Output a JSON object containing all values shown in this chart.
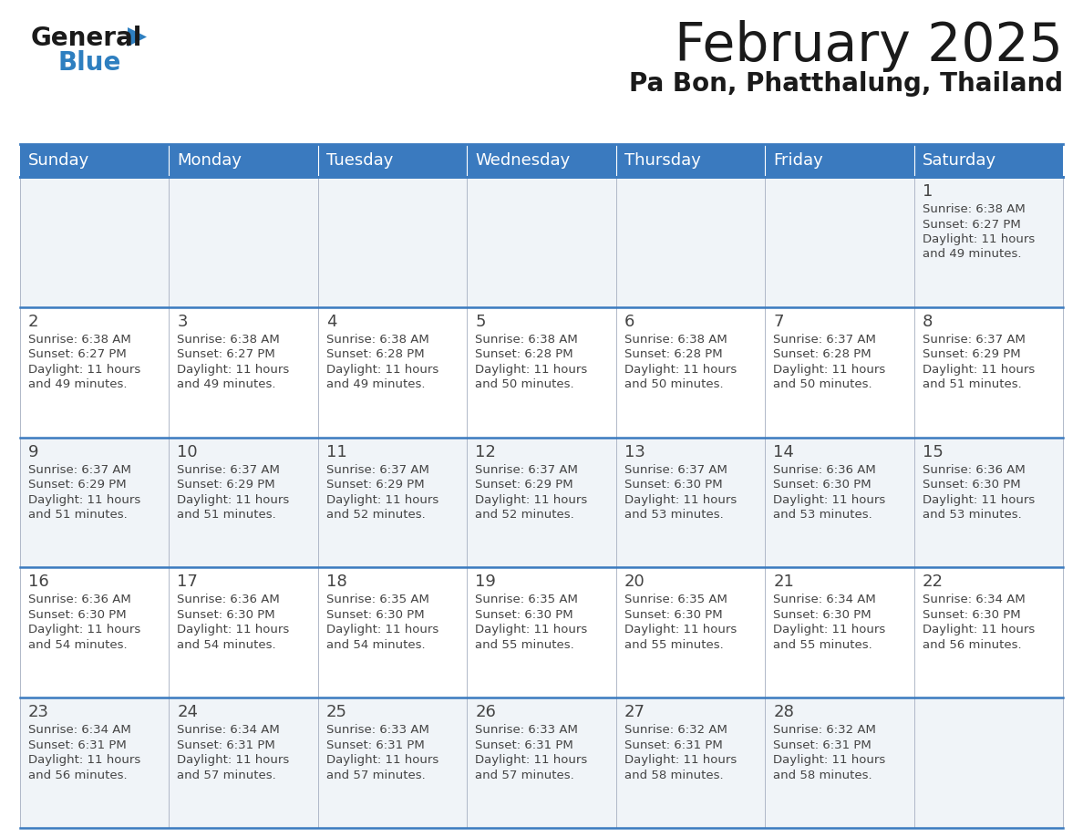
{
  "title": "February 2025",
  "subtitle": "Pa Bon, Phatthalung, Thailand",
  "header_color": "#3a7abf",
  "header_text_color": "#ffffff",
  "border_color": "#3a7abf",
  "day_names": [
    "Sunday",
    "Monday",
    "Tuesday",
    "Wednesday",
    "Thursday",
    "Friday",
    "Saturday"
  ],
  "days": [
    {
      "day": 1,
      "col": 6,
      "row": 0,
      "sunrise": "6:38 AM",
      "sunset": "6:27 PM",
      "daylight_l1": "11 hours",
      "daylight_l2": "and 49 minutes."
    },
    {
      "day": 2,
      "col": 0,
      "row": 1,
      "sunrise": "6:38 AM",
      "sunset": "6:27 PM",
      "daylight_l1": "11 hours",
      "daylight_l2": "and 49 minutes."
    },
    {
      "day": 3,
      "col": 1,
      "row": 1,
      "sunrise": "6:38 AM",
      "sunset": "6:27 PM",
      "daylight_l1": "11 hours",
      "daylight_l2": "and 49 minutes."
    },
    {
      "day": 4,
      "col": 2,
      "row": 1,
      "sunrise": "6:38 AM",
      "sunset": "6:28 PM",
      "daylight_l1": "11 hours",
      "daylight_l2": "and 49 minutes."
    },
    {
      "day": 5,
      "col": 3,
      "row": 1,
      "sunrise": "6:38 AM",
      "sunset": "6:28 PM",
      "daylight_l1": "11 hours",
      "daylight_l2": "and 50 minutes."
    },
    {
      "day": 6,
      "col": 4,
      "row": 1,
      "sunrise": "6:38 AM",
      "sunset": "6:28 PM",
      "daylight_l1": "11 hours",
      "daylight_l2": "and 50 minutes."
    },
    {
      "day": 7,
      "col": 5,
      "row": 1,
      "sunrise": "6:37 AM",
      "sunset": "6:28 PM",
      "daylight_l1": "11 hours",
      "daylight_l2": "and 50 minutes."
    },
    {
      "day": 8,
      "col": 6,
      "row": 1,
      "sunrise": "6:37 AM",
      "sunset": "6:29 PM",
      "daylight_l1": "11 hours",
      "daylight_l2": "and 51 minutes."
    },
    {
      "day": 9,
      "col": 0,
      "row": 2,
      "sunrise": "6:37 AM",
      "sunset": "6:29 PM",
      "daylight_l1": "11 hours",
      "daylight_l2": "and 51 minutes."
    },
    {
      "day": 10,
      "col": 1,
      "row": 2,
      "sunrise": "6:37 AM",
      "sunset": "6:29 PM",
      "daylight_l1": "11 hours",
      "daylight_l2": "and 51 minutes."
    },
    {
      "day": 11,
      "col": 2,
      "row": 2,
      "sunrise": "6:37 AM",
      "sunset": "6:29 PM",
      "daylight_l1": "11 hours",
      "daylight_l2": "and 52 minutes."
    },
    {
      "day": 12,
      "col": 3,
      "row": 2,
      "sunrise": "6:37 AM",
      "sunset": "6:29 PM",
      "daylight_l1": "11 hours",
      "daylight_l2": "and 52 minutes."
    },
    {
      "day": 13,
      "col": 4,
      "row": 2,
      "sunrise": "6:37 AM",
      "sunset": "6:30 PM",
      "daylight_l1": "11 hours",
      "daylight_l2": "and 53 minutes."
    },
    {
      "day": 14,
      "col": 5,
      "row": 2,
      "sunrise": "6:36 AM",
      "sunset": "6:30 PM",
      "daylight_l1": "11 hours",
      "daylight_l2": "and 53 minutes."
    },
    {
      "day": 15,
      "col": 6,
      "row": 2,
      "sunrise": "6:36 AM",
      "sunset": "6:30 PM",
      "daylight_l1": "11 hours",
      "daylight_l2": "and 53 minutes."
    },
    {
      "day": 16,
      "col": 0,
      "row": 3,
      "sunrise": "6:36 AM",
      "sunset": "6:30 PM",
      "daylight_l1": "11 hours",
      "daylight_l2": "and 54 minutes."
    },
    {
      "day": 17,
      "col": 1,
      "row": 3,
      "sunrise": "6:36 AM",
      "sunset": "6:30 PM",
      "daylight_l1": "11 hours",
      "daylight_l2": "and 54 minutes."
    },
    {
      "day": 18,
      "col": 2,
      "row": 3,
      "sunrise": "6:35 AM",
      "sunset": "6:30 PM",
      "daylight_l1": "11 hours",
      "daylight_l2": "and 54 minutes."
    },
    {
      "day": 19,
      "col": 3,
      "row": 3,
      "sunrise": "6:35 AM",
      "sunset": "6:30 PM",
      "daylight_l1": "11 hours",
      "daylight_l2": "and 55 minutes."
    },
    {
      "day": 20,
      "col": 4,
      "row": 3,
      "sunrise": "6:35 AM",
      "sunset": "6:30 PM",
      "daylight_l1": "11 hours",
      "daylight_l2": "and 55 minutes."
    },
    {
      "day": 21,
      "col": 5,
      "row": 3,
      "sunrise": "6:34 AM",
      "sunset": "6:30 PM",
      "daylight_l1": "11 hours",
      "daylight_l2": "and 55 minutes."
    },
    {
      "day": 22,
      "col": 6,
      "row": 3,
      "sunrise": "6:34 AM",
      "sunset": "6:30 PM",
      "daylight_l1": "11 hours",
      "daylight_l2": "and 56 minutes."
    },
    {
      "day": 23,
      "col": 0,
      "row": 4,
      "sunrise": "6:34 AM",
      "sunset": "6:31 PM",
      "daylight_l1": "11 hours",
      "daylight_l2": "and 56 minutes."
    },
    {
      "day": 24,
      "col": 1,
      "row": 4,
      "sunrise": "6:34 AM",
      "sunset": "6:31 PM",
      "daylight_l1": "11 hours",
      "daylight_l2": "and 57 minutes."
    },
    {
      "day": 25,
      "col": 2,
      "row": 4,
      "sunrise": "6:33 AM",
      "sunset": "6:31 PM",
      "daylight_l1": "11 hours",
      "daylight_l2": "and 57 minutes."
    },
    {
      "day": 26,
      "col": 3,
      "row": 4,
      "sunrise": "6:33 AM",
      "sunset": "6:31 PM",
      "daylight_l1": "11 hours",
      "daylight_l2": "and 57 minutes."
    },
    {
      "day": 27,
      "col": 4,
      "row": 4,
      "sunrise": "6:32 AM",
      "sunset": "6:31 PM",
      "daylight_l1": "11 hours",
      "daylight_l2": "and 58 minutes."
    },
    {
      "day": 28,
      "col": 5,
      "row": 4,
      "sunrise": "6:32 AM",
      "sunset": "6:31 PM",
      "daylight_l1": "11 hours",
      "daylight_l2": "and 58 minutes."
    }
  ],
  "num_rows": 5,
  "num_cols": 7,
  "logo_general_color": "#1a1a1a",
  "logo_blue_color": "#2e7fc0",
  "logo_triangle_color": "#2e7fc0",
  "title_fontsize": 42,
  "subtitle_fontsize": 20,
  "header_fontsize": 13,
  "day_num_fontsize": 13,
  "cell_text_fontsize": 9.5
}
